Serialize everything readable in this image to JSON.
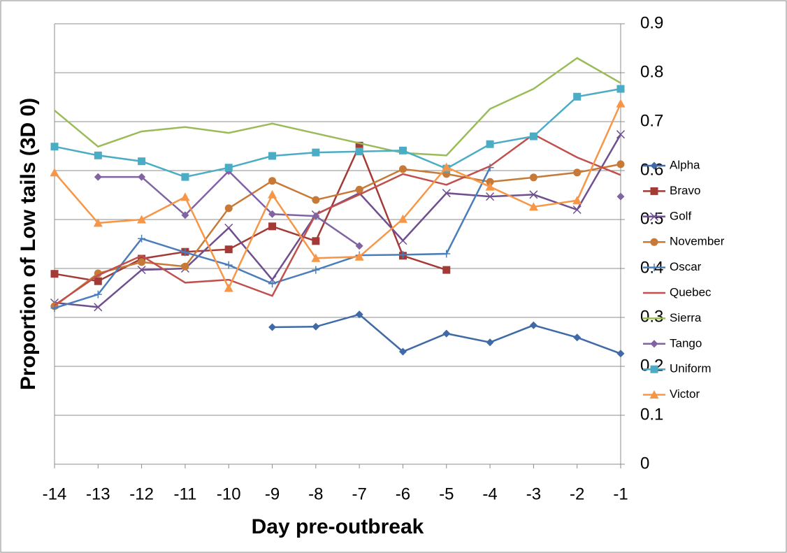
{
  "chart_data": {
    "type": "line",
    "x_label": "Day pre-outbreak",
    "y_label": "Proportion of Low tails (3D 0)",
    "x": [
      -14,
      -13,
      -12,
      -11,
      -10,
      -9,
      -8,
      -7,
      -6,
      -5,
      -4,
      -3,
      -2,
      -1
    ],
    "xlim": [
      -14,
      -1
    ],
    "xticks": [
      -14,
      -13,
      -12,
      -11,
      -10,
      -9,
      -8,
      -7,
      -6,
      -5,
      -4,
      -3,
      -2,
      -1
    ],
    "ylim": [
      0,
      0.9
    ],
    "yticks": [
      0,
      0.1,
      0.2,
      0.3,
      0.4,
      0.5,
      0.6,
      0.7,
      0.8,
      0.9
    ],
    "grid": true,
    "y_axis_side": "right",
    "legend": "right",
    "series": [
      {
        "name": "Alpha",
        "color": "#3f6aa6",
        "marker": "diamond",
        "values": [
          null,
          null,
          null,
          null,
          null,
          0.28,
          0.281,
          0.306,
          0.23,
          0.267,
          0.249,
          0.284,
          0.259,
          0.226
        ]
      },
      {
        "name": "Bravo",
        "color": "#a33a36",
        "marker": "square",
        "values": [
          0.389,
          0.374,
          0.42,
          0.434,
          0.439,
          0.486,
          0.456,
          0.651,
          0.426,
          0.397,
          null,
          null,
          null,
          null
        ]
      },
      {
        "name": "Golf",
        "color": "#6f4f8f",
        "marker": "x",
        "values": [
          0.33,
          0.321,
          0.397,
          0.4,
          0.483,
          0.377,
          0.51,
          0.554,
          0.457,
          0.554,
          0.547,
          0.551,
          0.52,
          0.674
        ]
      },
      {
        "name": "November",
        "color": "#c77a37",
        "marker": "circle",
        "values": [
          0.323,
          0.39,
          0.413,
          0.404,
          0.523,
          0.579,
          0.54,
          0.561,
          0.603,
          0.593,
          0.577,
          0.586,
          0.596,
          0.613
        ]
      },
      {
        "name": "Oscar",
        "color": "#4a7ebb",
        "marker": "plus",
        "values": [
          0.319,
          0.347,
          0.461,
          0.433,
          0.407,
          0.369,
          0.397,
          0.427,
          0.428,
          0.43,
          0.606,
          null,
          null,
          null
        ]
      },
      {
        "name": "Quebec",
        "color": "#c0504d",
        "marker": "none",
        "values": [
          0.325,
          0.386,
          0.426,
          0.371,
          0.377,
          0.344,
          0.511,
          0.551,
          0.593,
          0.571,
          0.609,
          0.674,
          0.627,
          0.591
        ]
      },
      {
        "name": "Sierra",
        "color": "#9bbb59",
        "marker": "none",
        "values": [
          0.723,
          0.649,
          0.68,
          0.689,
          0.677,
          0.696,
          0.676,
          0.656,
          0.636,
          0.631,
          0.726,
          0.767,
          0.83,
          0.779
        ]
      },
      {
        "name": "Tango",
        "color": "#8064a2",
        "marker": "diamond",
        "values": [
          null,
          0.587,
          0.587,
          0.509,
          0.599,
          0.511,
          0.507,
          0.446,
          null,
          null,
          null,
          null,
          null,
          0.547
        ]
      },
      {
        "name": "Uniform",
        "color": "#4bacc6",
        "marker": "square",
        "values": [
          0.649,
          0.631,
          0.619,
          0.587,
          0.606,
          0.63,
          0.637,
          0.639,
          0.641,
          0.604,
          0.654,
          0.67,
          0.751,
          0.767
        ]
      },
      {
        "name": "Victor",
        "color": "#f79646",
        "marker": "triangle",
        "values": [
          0.596,
          0.493,
          0.5,
          0.546,
          0.36,
          0.551,
          0.421,
          0.424,
          0.501,
          0.607,
          0.567,
          0.526,
          0.539,
          0.737
        ]
      }
    ]
  }
}
